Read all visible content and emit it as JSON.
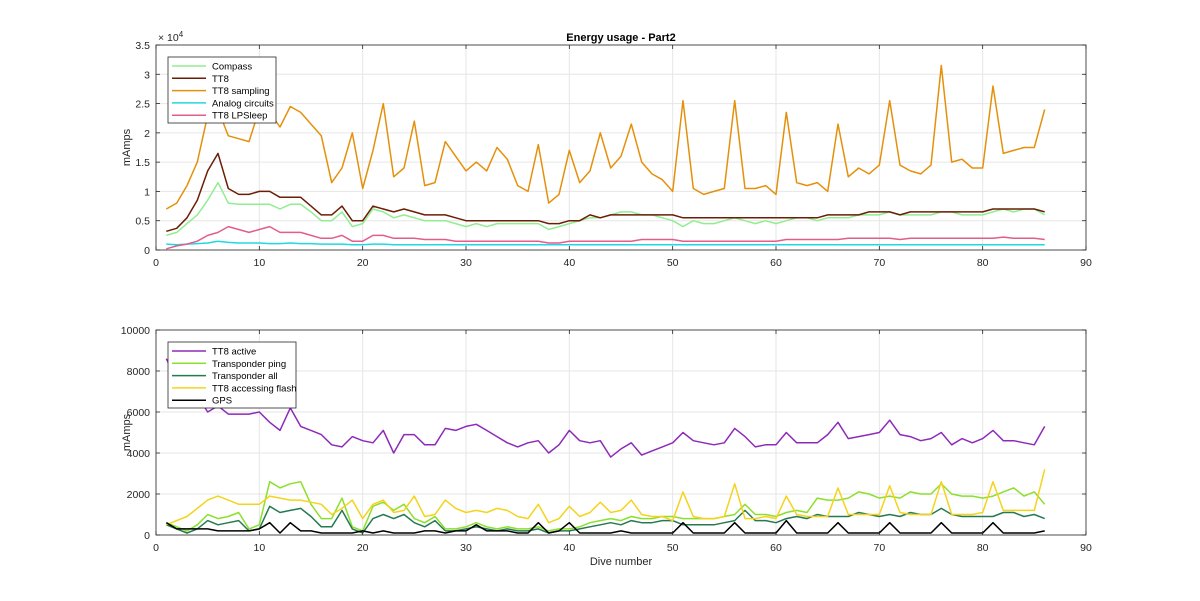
{
  "chart_data": [
    {
      "type": "line",
      "title": "Energy usage - Part2",
      "xlabel": "",
      "ylabel": "mAmps",
      "exponent_label": "× 10",
      "exponent_power": "4",
      "xlim": [
        0,
        90
      ],
      "ylim": [
        0,
        35000
      ],
      "xticks": [
        "0",
        "10",
        "20",
        "30",
        "40",
        "50",
        "60",
        "70",
        "80",
        "90"
      ],
      "yticks": [
        "0",
        "0.5",
        "1",
        "1.5",
        "2",
        "2.5",
        "3",
        "3.5"
      ],
      "grid": true,
      "legend": "top-left",
      "x": [
        1,
        2,
        3,
        4,
        5,
        6,
        7,
        8,
        9,
        10,
        11,
        12,
        13,
        14,
        15,
        16,
        17,
        18,
        19,
        20,
        21,
        22,
        23,
        24,
        25,
        26,
        27,
        28,
        29,
        30,
        31,
        32,
        33,
        34,
        35,
        36,
        37,
        38,
        39,
        40,
        41,
        42,
        43,
        44,
        45,
        46,
        47,
        48,
        49,
        50,
        51,
        52,
        53,
        54,
        55,
        56,
        57,
        58,
        59,
        60,
        61,
        62,
        63,
        64,
        65,
        66,
        67,
        68,
        69,
        70,
        71,
        72,
        73,
        74,
        75,
        76,
        77,
        78,
        79,
        80,
        81,
        82,
        83,
        84,
        85,
        86
      ],
      "series": [
        {
          "name": "Compass",
          "color": "#90ee90",
          "values": [
            2500,
            3000,
            4500,
            6000,
            8500,
            11500,
            8000,
            7800,
            7800,
            7800,
            7800,
            7000,
            7800,
            7800,
            6500,
            5000,
            5000,
            6500,
            4000,
            4500,
            7000,
            6500,
            5500,
            6000,
            5500,
            5000,
            5000,
            5000,
            4500,
            4000,
            4500,
            4000,
            4500,
            4500,
            4500,
            4500,
            4500,
            3500,
            4000,
            4500,
            5000,
            5500,
            5500,
            6000,
            6500,
            6500,
            6000,
            6000,
            5500,
            5000,
            4000,
            5000,
            4500,
            4500,
            5000,
            5500,
            5000,
            4500,
            5000,
            4500,
            5000,
            5500,
            5500,
            5000,
            5500,
            5500,
            5500,
            6000,
            6000,
            6000,
            6500,
            6000,
            6000,
            6000,
            6000,
            6500,
            6500,
            6000,
            6000,
            6000,
            6500,
            7000,
            6500,
            7000,
            7000,
            6000
          ]
        },
        {
          "name": "TT8",
          "color": "#6b1e06",
          "values": [
            3200,
            3700,
            5500,
            8500,
            13500,
            16500,
            10500,
            9500,
            9500,
            10000,
            10000,
            9000,
            9000,
            9000,
            7500,
            6000,
            6000,
            7500,
            5000,
            5000,
            7500,
            7000,
            6500,
            7000,
            6500,
            6000,
            6000,
            6000,
            5500,
            5000,
            5000,
            5000,
            5000,
            5000,
            5000,
            5000,
            5000,
            4500,
            4500,
            5000,
            5000,
            6000,
            5500,
            6000,
            6000,
            6000,
            6000,
            6000,
            6000,
            6000,
            5500,
            5500,
            5500,
            5500,
            5500,
            5500,
            5500,
            5500,
            5500,
            5500,
            5500,
            5500,
            5500,
            5500,
            6000,
            6000,
            6000,
            6000,
            6500,
            6500,
            6500,
            6000,
            6500,
            6500,
            6500,
            6500,
            6500,
            6500,
            6500,
            6500,
            7000,
            7000,
            7000,
            7000,
            7000,
            6500
          ]
        },
        {
          "name": "TT8 sampling",
          "color": "#e5900b",
          "values": [
            7000,
            8000,
            11000,
            15000,
            23000,
            24000,
            19500,
            19000,
            18500,
            24000,
            23500,
            21000,
            24500,
            23500,
            21500,
            19500,
            11500,
            14000,
            20000,
            10500,
            17000,
            25000,
            12500,
            14000,
            22000,
            11000,
            11500,
            18500,
            16000,
            13500,
            15000,
            13500,
            17500,
            15500,
            11000,
            10000,
            18000,
            8000,
            9500,
            17000,
            11500,
            13500,
            20000,
            14000,
            16000,
            21500,
            15000,
            13000,
            12000,
            10000,
            25500,
            10500,
            9500,
            10000,
            10500,
            25500,
            10500,
            10500,
            11000,
            9500,
            23500,
            11500,
            11000,
            11500,
            10000,
            21500,
            12500,
            14000,
            13000,
            14500,
            25500,
            14500,
            13500,
            13000,
            14500,
            31500,
            15000,
            15500,
            14000,
            14000,
            28000,
            16500,
            17000,
            17500,
            17500,
            24000
          ]
        },
        {
          "name": "Analog circuits",
          "color": "#22d8e0",
          "values": [
            1000,
            900,
            1000,
            1100,
            1200,
            1500,
            1300,
            1200,
            1200,
            1200,
            1100,
            1100,
            1200,
            1100,
            1100,
            1000,
            1000,
            1000,
            900,
            900,
            1000,
            1000,
            900,
            900,
            900,
            900,
            900,
            900,
            900,
            900,
            900,
            900,
            900,
            900,
            900,
            900,
            900,
            900,
            900,
            900,
            900,
            900,
            900,
            900,
            900,
            900,
            900,
            900,
            900,
            900,
            900,
            900,
            900,
            900,
            900,
            900,
            900,
            900,
            900,
            900,
            900,
            900,
            900,
            900,
            900,
            900,
            900,
            900,
            900,
            900,
            900,
            900,
            900,
            900,
            900,
            900,
            900,
            900,
            900,
            900,
            900,
            900,
            900,
            900,
            900,
            900
          ]
        },
        {
          "name": "TT8 LPSleep",
          "color": "#e25d8e",
          "values": [
            200,
            700,
            1000,
            1500,
            2500,
            3000,
            4000,
            3500,
            3000,
            3500,
            4000,
            3000,
            3000,
            3000,
            2500,
            2000,
            2000,
            2500,
            1500,
            1500,
            2500,
            2500,
            2000,
            2000,
            2000,
            1800,
            1800,
            1800,
            1500,
            1500,
            1500,
            1500,
            1500,
            1500,
            1500,
            1500,
            1500,
            1200,
            1200,
            1500,
            1500,
            1500,
            1500,
            1500,
            1500,
            1500,
            1800,
            1800,
            1800,
            1800,
            1500,
            1500,
            1500,
            1500,
            1500,
            1500,
            1500,
            1500,
            1500,
            1500,
            1800,
            1800,
            1800,
            1800,
            1800,
            1800,
            2000,
            2000,
            2000,
            2000,
            2000,
            1800,
            2000,
            2000,
            2000,
            2000,
            2000,
            2000,
            2000,
            2000,
            2000,
            2200,
            2000,
            2000,
            2000,
            1800
          ]
        }
      ]
    },
    {
      "type": "line",
      "title": "",
      "xlabel": "Dive number",
      "ylabel": "mAmps",
      "xlim": [
        0,
        90
      ],
      "ylim": [
        0,
        10000
      ],
      "xticks": [
        "0",
        "10",
        "20",
        "30",
        "40",
        "50",
        "60",
        "70",
        "80",
        "90"
      ],
      "yticks": [
        "0",
        "2000",
        "4000",
        "6000",
        "8000",
        "10000"
      ],
      "grid": true,
      "legend": "top-left",
      "x": [
        1,
        2,
        3,
        4,
        5,
        6,
        7,
        8,
        9,
        10,
        11,
        12,
        13,
        14,
        15,
        16,
        17,
        18,
        19,
        20,
        21,
        22,
        23,
        24,
        25,
        26,
        27,
        28,
        29,
        30,
        31,
        32,
        33,
        34,
        35,
        36,
        37,
        38,
        39,
        40,
        41,
        42,
        43,
        44,
        45,
        46,
        47,
        48,
        49,
        50,
        51,
        52,
        53,
        54,
        55,
        56,
        57,
        58,
        59,
        60,
        61,
        62,
        63,
        64,
        65,
        66,
        67,
        68,
        69,
        70,
        71,
        72,
        73,
        74,
        75,
        76,
        77,
        78,
        79,
        80,
        81,
        82,
        83,
        84,
        85,
        86
      ],
      "series": [
        {
          "name": "TT8 active",
          "color": "#8e2ab8",
          "values": [
            8600,
            7600,
            7200,
            6800,
            6000,
            6300,
            5900,
            5900,
            5900,
            6000,
            5500,
            5100,
            6200,
            5300,
            5100,
            4900,
            4400,
            4300,
            4800,
            4600,
            4500,
            5100,
            4000,
            4900,
            4900,
            4400,
            4400,
            5200,
            5100,
            5300,
            5400,
            5100,
            4800,
            4500,
            4300,
            4500,
            4600,
            4000,
            4400,
            5100,
            4600,
            4500,
            4600,
            3800,
            4200,
            4500,
            3900,
            4100,
            4300,
            4500,
            5000,
            4600,
            4500,
            4400,
            4500,
            5200,
            4800,
            4300,
            4400,
            4400,
            5000,
            4500,
            4500,
            4500,
            4900,
            5500,
            4700,
            4800,
            4900,
            5000,
            5600,
            4900,
            4800,
            4600,
            4700,
            5000,
            4400,
            4700,
            4500,
            4700,
            5100,
            4600,
            4600,
            4500,
            4400,
            5300
          ]
        },
        {
          "name": "Transponder ping",
          "color": "#8be02b",
          "values": [
            600,
            400,
            200,
            500,
            1000,
            800,
            900,
            1100,
            300,
            500,
            2600,
            2300,
            2500,
            2600,
            1500,
            800,
            800,
            1800,
            400,
            200,
            1400,
            1600,
            1200,
            1500,
            800,
            600,
            900,
            300,
            300,
            400,
            600,
            400,
            300,
            400,
            300,
            300,
            400,
            200,
            300,
            300,
            400,
            600,
            700,
            800,
            700,
            900,
            800,
            800,
            900,
            900,
            800,
            800,
            800,
            800,
            900,
            1000,
            1500,
            1000,
            1000,
            900,
            1100,
            1200,
            1100,
            1800,
            1700,
            1700,
            1800,
            2100,
            2000,
            1800,
            1900,
            1800,
            2100,
            2000,
            2000,
            2500,
            2000,
            1900,
            1900,
            1800,
            1900,
            2100,
            2300,
            1900,
            2100,
            1500
          ]
        },
        {
          "name": "Transponder all",
          "color": "#257a50",
          "values": [
            500,
            300,
            100,
            300,
            700,
            500,
            600,
            700,
            200,
            300,
            1400,
            1100,
            1200,
            1300,
            900,
            400,
            400,
            1200,
            300,
            100,
            800,
            1000,
            800,
            1000,
            600,
            400,
            700,
            200,
            200,
            300,
            400,
            300,
            200,
            300,
            200,
            200,
            300,
            100,
            200,
            200,
            300,
            400,
            500,
            600,
            500,
            700,
            600,
            600,
            700,
            700,
            500,
            500,
            500,
            500,
            600,
            700,
            1200,
            700,
            700,
            600,
            800,
            900,
            800,
            1000,
            900,
            900,
            900,
            1100,
            1000,
            900,
            1000,
            900,
            1100,
            1000,
            1000,
            1300,
            1000,
            900,
            900,
            900,
            900,
            1100,
            1100,
            900,
            1000,
            800
          ]
        },
        {
          "name": "TT8 accessing flash",
          "color": "#f5d31c",
          "values": [
            500,
            700,
            900,
            1300,
            1700,
            1900,
            1700,
            1500,
            1500,
            1500,
            1900,
            1800,
            1700,
            1700,
            1600,
            1500,
            1000,
            1300,
            1700,
            800,
            1500,
            1700,
            1100,
            1200,
            1900,
            900,
            1000,
            1700,
            1300,
            1100,
            1200,
            1100,
            1300,
            1200,
            900,
            800,
            1500,
            600,
            800,
            1400,
            900,
            1100,
            1600,
            1100,
            1200,
            1700,
            1000,
            900,
            900,
            700,
            2100,
            900,
            800,
            800,
            900,
            2500,
            800,
            800,
            900,
            800,
            1900,
            1000,
            900,
            900,
            900,
            2300,
            1000,
            1000,
            1000,
            1000,
            2400,
            1100,
            1000,
            1000,
            1000,
            2600,
            1000,
            1000,
            1000,
            1100,
            2600,
            1200,
            1200,
            1200,
            1200,
            3200
          ]
        },
        {
          "name": "GPS",
          "color": "#000000",
          "values": [
            600,
            300,
            300,
            300,
            300,
            200,
            200,
            200,
            200,
            300,
            600,
            100,
            600,
            200,
            200,
            100,
            100,
            100,
            100,
            200,
            100,
            200,
            100,
            100,
            100,
            200,
            200,
            100,
            200,
            200,
            500,
            200,
            200,
            200,
            100,
            100,
            600,
            100,
            200,
            600,
            100,
            100,
            100,
            100,
            200,
            100,
            100,
            100,
            100,
            100,
            600,
            100,
            100,
            100,
            100,
            600,
            100,
            100,
            100,
            100,
            700,
            100,
            100,
            100,
            100,
            600,
            100,
            100,
            100,
            100,
            600,
            100,
            100,
            100,
            100,
            600,
            100,
            100,
            100,
            100,
            600,
            100,
            100,
            100,
            100,
            200
          ]
        }
      ]
    }
  ]
}
